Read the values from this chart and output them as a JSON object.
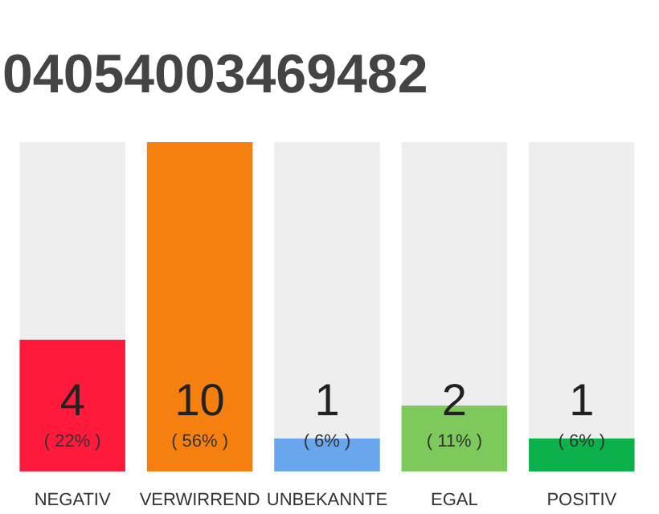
{
  "chart_data": {
    "type": "bar",
    "title": "04054003469482",
    "categories": [
      "NEGATIV",
      "VERWIRREND",
      "UNBEKANNTE",
      "EGAL",
      "POSITIV"
    ],
    "values": [
      4,
      10,
      1,
      2,
      1
    ],
    "colors": [
      "#ff1a3c",
      "#f5800f",
      "#6aa6ee",
      "#7dc95c",
      "#0cb14b"
    ],
    "ylim": [
      0,
      10
    ],
    "tick_labels": "x",
    "grid": false,
    "data_labels": true,
    "annotations": [
      "( 22% )",
      "( 56% )",
      "( 6% )",
      "( 11% )",
      "( 6% )"
    ]
  }
}
